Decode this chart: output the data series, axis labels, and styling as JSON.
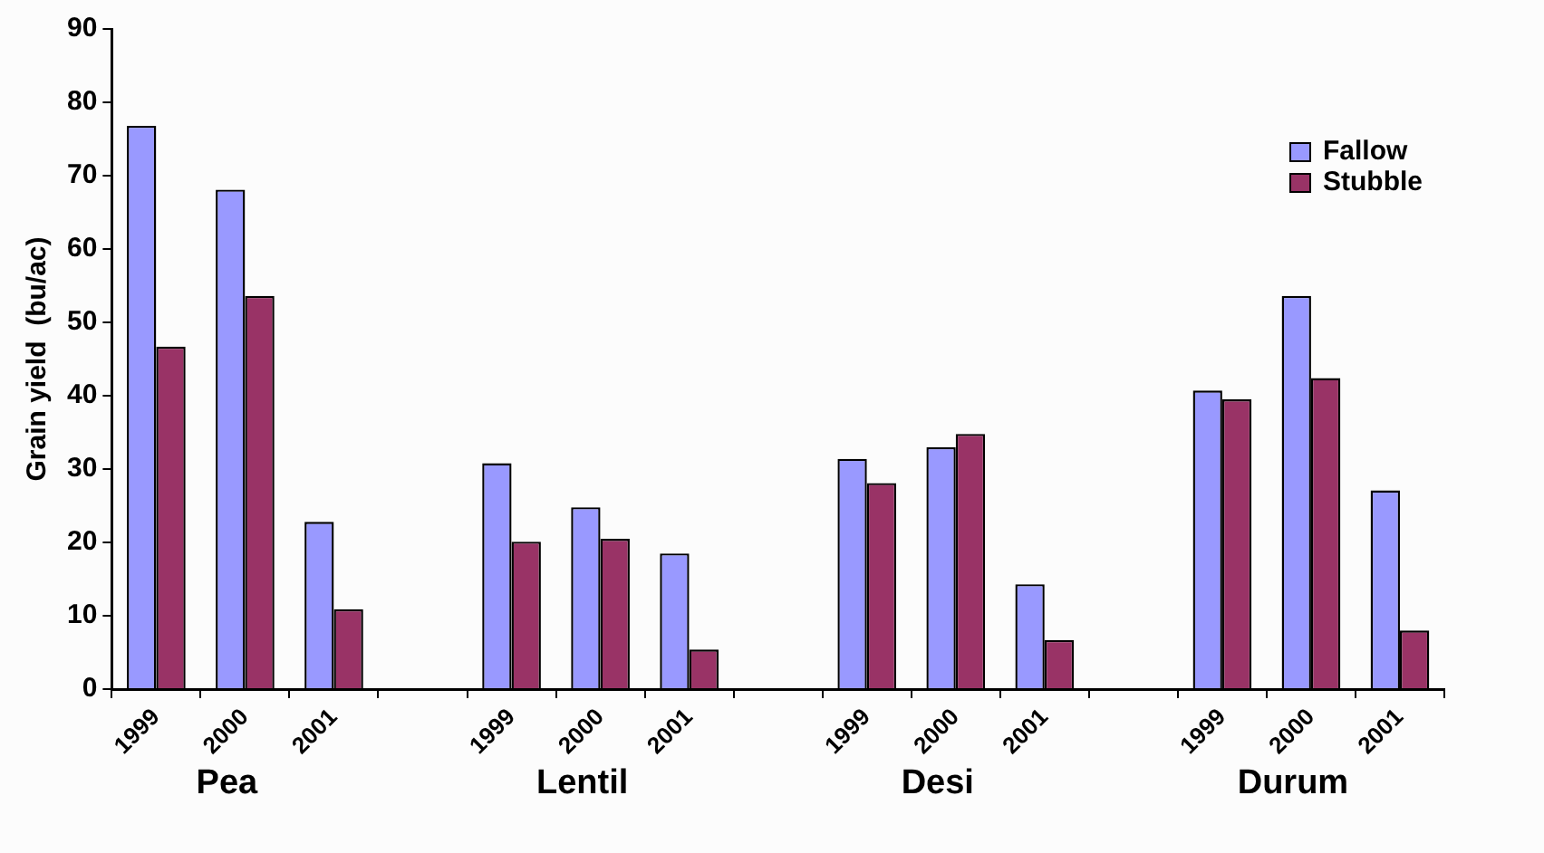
{
  "chart_data": {
    "type": "bar",
    "ylabel": "Grain yield  (bu/ac)",
    "categories": [
      "1999",
      "2000",
      "2001",
      null,
      "1999",
      "2000",
      "2001",
      null,
      "1999",
      "2000",
      "2001",
      null,
      "1999",
      "2000",
      "2001"
    ],
    "series": [
      {
        "name": "Fallow",
        "color": "#9999ff",
        "values": [
          76.8,
          68.1,
          22.8,
          null,
          30.8,
          24.8,
          18.5,
          null,
          31.4,
          33.0,
          14.3,
          null,
          40.7,
          53.6,
          27.1
        ]
      },
      {
        "name": "Stubble",
        "color": "#993366",
        "values": [
          46.7,
          53.6,
          10.9,
          null,
          20.1,
          20.5,
          5.4,
          null,
          28.1,
          34.8,
          6.7,
          null,
          39.5,
          42.4,
          8.0
        ]
      }
    ],
    "annotations": [
      "Pea",
      "Lentil",
      "Desi",
      "Durum"
    ],
    "ylim": [
      0,
      90
    ],
    "yticks": [
      0,
      10,
      20,
      30,
      40,
      50,
      60,
      70,
      80,
      90
    ],
    "grid": false,
    "legend": "top right"
  }
}
